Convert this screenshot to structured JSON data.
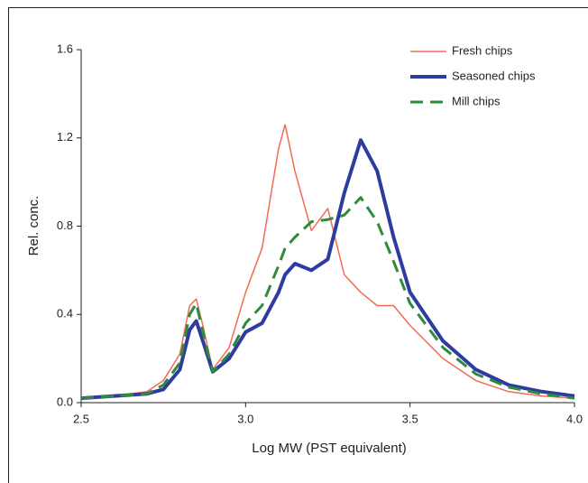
{
  "chart_data": {
    "type": "line",
    "x_label": "Log MW (PST equivalent)",
    "y_label": "Rel. conc.",
    "x": [
      2.5,
      2.6,
      2.7,
      2.75,
      2.8,
      2.83,
      2.85,
      2.87,
      2.9,
      2.95,
      3.0,
      3.05,
      3.1,
      3.12,
      3.15,
      3.2,
      3.25,
      3.3,
      3.35,
      3.4,
      3.45,
      3.5,
      3.6,
      3.7,
      3.8,
      3.9,
      4.0
    ],
    "series": [
      {
        "name": "Fresh chips",
        "color": "#f26b55",
        "line_style": "solid",
        "values": [
          0.02,
          0.03,
          0.05,
          0.1,
          0.22,
          0.44,
          0.47,
          0.35,
          0.15,
          0.25,
          0.5,
          0.7,
          1.15,
          1.26,
          1.05,
          0.78,
          0.88,
          0.58,
          0.5,
          0.44,
          0.44,
          0.35,
          0.2,
          0.1,
          0.05,
          0.03,
          0.02
        ]
      },
      {
        "name": "Seasoned chips",
        "color": "#2f3c9f",
        "line_style": "solid",
        "values": [
          0.02,
          0.03,
          0.04,
          0.06,
          0.15,
          0.33,
          0.37,
          0.28,
          0.14,
          0.2,
          0.32,
          0.36,
          0.5,
          0.58,
          0.63,
          0.6,
          0.65,
          0.95,
          1.19,
          1.05,
          0.75,
          0.5,
          0.28,
          0.15,
          0.08,
          0.05,
          0.03
        ]
      },
      {
        "name": "Mill chips",
        "color": "#2e8a3f",
        "line_style": "dashed",
        "values": [
          0.02,
          0.03,
          0.04,
          0.08,
          0.18,
          0.4,
          0.45,
          0.32,
          0.14,
          0.22,
          0.36,
          0.44,
          0.62,
          0.7,
          0.75,
          0.82,
          0.83,
          0.85,
          0.93,
          0.82,
          0.64,
          0.45,
          0.25,
          0.13,
          0.07,
          0.04,
          0.02
        ]
      }
    ],
    "xlim": [
      2.5,
      4.0
    ],
    "xticks": [
      {
        "value": 2.5,
        "label": "2.5"
      },
      {
        "value": 3,
        "label": "3.0"
      },
      {
        "value": 3.5,
        "label": "3.5"
      },
      {
        "value": 4,
        "label": "4.0"
      }
    ],
    "ylim": [
      0,
      1.6
    ],
    "yticks": [
      {
        "value": 0,
        "label": "0.0"
      },
      {
        "value": 0.4,
        "label": "0.4"
      },
      {
        "value": 0.8,
        "label": "0.8"
      },
      {
        "value": 1.2,
        "label": "1.2"
      },
      {
        "value": 1.6,
        "label": "1.6"
      }
    ],
    "legend": "upper-right"
  }
}
